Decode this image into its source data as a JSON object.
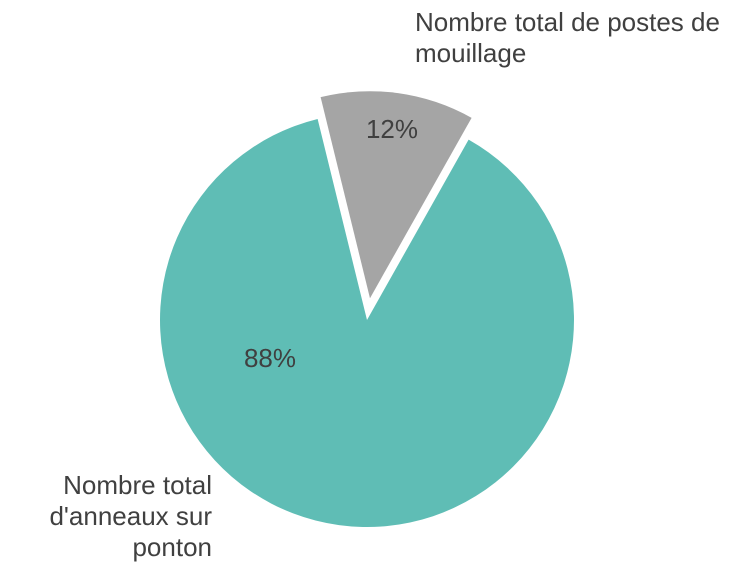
{
  "chart_data": {
    "type": "pie",
    "categories": [
      "Nombre total de postes de mouillage",
      "Nombre total d'anneaux sur ponton"
    ],
    "values": [
      12,
      88
    ],
    "value_labels": [
      "12%",
      "88%"
    ],
    "colors": [
      "#a5a5a5",
      "#5fbdb5"
    ]
  }
}
